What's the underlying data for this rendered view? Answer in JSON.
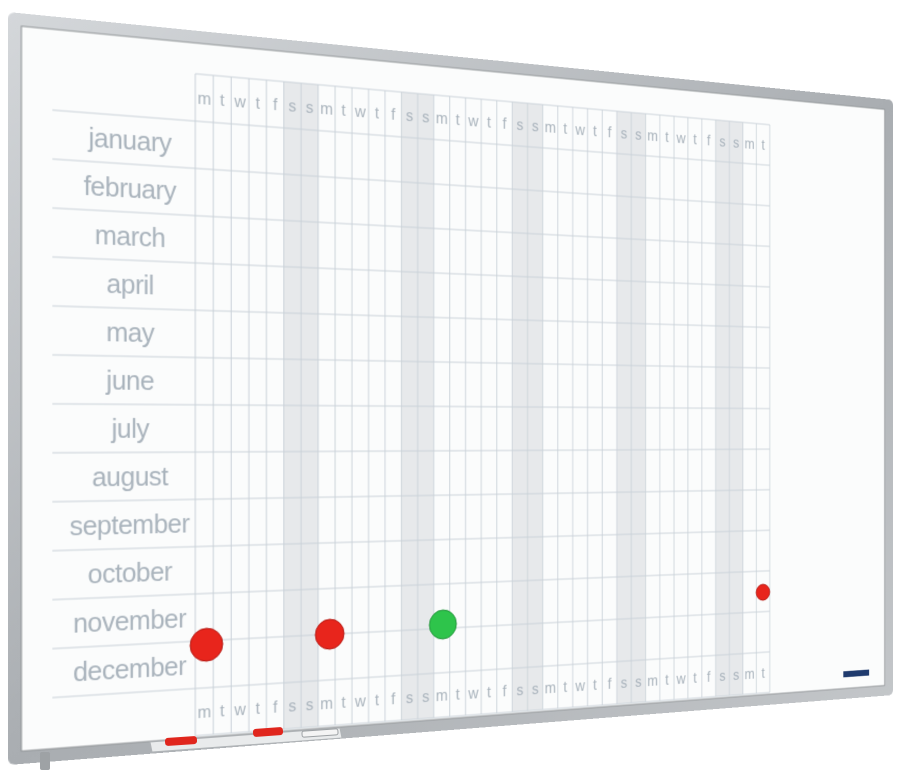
{
  "planner": {
    "months": [
      "january",
      "february",
      "march",
      "april",
      "may",
      "june",
      "july",
      "august",
      "september",
      "october",
      "november",
      "december"
    ],
    "header_days": [
      "m",
      "t",
      "w",
      "t",
      "f",
      "s",
      "s",
      "m",
      "t",
      "w",
      "t",
      "f",
      "s",
      "s",
      "m",
      "t",
      "w",
      "t",
      "f",
      "s",
      "s",
      "m",
      "t",
      "w",
      "t",
      "f",
      "s",
      "s",
      "m",
      "t",
      "w",
      "t",
      "f",
      "s",
      "s",
      "m",
      "t"
    ],
    "footer_days": [
      "m",
      "t",
      "w",
      "t",
      "f",
      "s",
      "s",
      "m",
      "t",
      "w",
      "t",
      "f",
      "s",
      "s",
      "m",
      "t",
      "w",
      "t",
      "f",
      "s",
      "s",
      "m",
      "t",
      "w",
      "t",
      "f",
      "s",
      "s",
      "m",
      "t",
      "w",
      "t",
      "f",
      "s",
      "s",
      "m",
      "t"
    ]
  }
}
